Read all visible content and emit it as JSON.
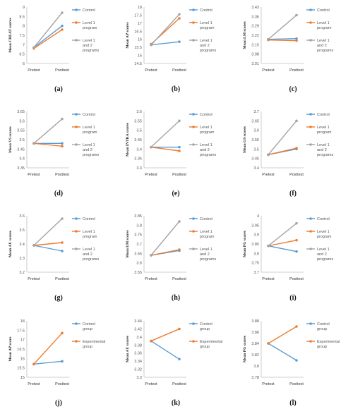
{
  "colors": {
    "blue": "#5b9bd5",
    "orange": "#ed7d31",
    "gray": "#a5a5a5",
    "axis": "#bfbfbf"
  },
  "chart_data": [
    {
      "type": "line",
      "panel_label": "(a)",
      "ylabel": "Mean CREAT scores",
      "categories": [
        "Pretest",
        "Posttest"
      ],
      "ylim": [
        6,
        9
      ],
      "yticks": [
        "6",
        "6.5",
        "7",
        "7.5",
        "8",
        "8.5",
        "9"
      ],
      "series": [
        {
          "name": "Control",
          "values": [
            6.85,
            8.0
          ],
          "color": "#5b9bd5"
        },
        {
          "name": "Level 1 program",
          "values": [
            6.8,
            7.8
          ],
          "color": "#ed7d31"
        },
        {
          "name": "Level 1 and 2 programs",
          "values": [
            6.85,
            8.7
          ],
          "color": "#a5a5a5"
        }
      ]
    },
    {
      "type": "line",
      "panel_label": "(b)",
      "ylabel": "Mean AP scores",
      "categories": [
        "Pretest",
        "Posttest"
      ],
      "ylim": [
        14.5,
        18
      ],
      "yticks": [
        "14.5",
        "15",
        "15.5",
        "16",
        "16.5",
        "17",
        "17.5",
        "18"
      ],
      "series": [
        {
          "name": "Control",
          "values": [
            15.65,
            15.85
          ],
          "color": "#5b9bd5"
        },
        {
          "name": "Level 1 program",
          "values": [
            15.7,
            17.3
          ],
          "color": "#ed7d31"
        },
        {
          "name": "Level 1 and 2 programs",
          "values": [
            15.65,
            17.55
          ],
          "color": "#a5a5a5"
        }
      ]
    },
    {
      "type": "line",
      "panel_label": "(c)",
      "ylabel": "Mean LM scores",
      "categories": [
        "Pretest",
        "Posttest"
      ],
      "ylim": [
        3.01,
        3.43
      ],
      "yticks": [
        "3.01",
        "3.08",
        "3.15",
        "3.22",
        "3.29",
        "3.36",
        "3.43"
      ],
      "series": [
        {
          "name": "Control",
          "values": [
            3.19,
            3.195
          ],
          "color": "#5b9bd5"
        },
        {
          "name": "Level 1 program",
          "values": [
            3.185,
            3.18
          ],
          "color": "#ed7d31"
        },
        {
          "name": "Level 1 and 2 programs",
          "values": [
            3.19,
            3.37
          ],
          "color": "#a5a5a5"
        }
      ]
    },
    {
      "type": "line",
      "panel_label": "(d)",
      "ylabel": "Mean VS scores",
      "categories": [
        "Pretest",
        "Posttest"
      ],
      "ylim": [
        3.35,
        3.65
      ],
      "yticks": [
        "3.35",
        "3.4",
        "3.45",
        "3.5",
        "3.55",
        "3.6",
        "3.65"
      ],
      "series": [
        {
          "name": "Control",
          "values": [
            3.48,
            3.48
          ],
          "color": "#5b9bd5"
        },
        {
          "name": "Level 1 program",
          "values": [
            3.48,
            3.465
          ],
          "color": "#ed7d31"
        },
        {
          "name": "Level 1 and 2 programs",
          "values": [
            3.48,
            3.61
          ],
          "color": "#a5a5a5"
        }
      ]
    },
    {
      "type": "line",
      "panel_label": "(e)",
      "ylabel": "Mean INTRA scores",
      "categories": [
        "Pretest",
        "Posttest"
      ],
      "ylim": [
        3.3,
        3.6
      ],
      "yticks": [
        "3.3",
        "3.35",
        "3.4",
        "3.45",
        "3.5",
        "3.55",
        "3.6"
      ],
      "series": [
        {
          "name": "Control",
          "values": [
            3.41,
            3.41
          ],
          "color": "#5b9bd5"
        },
        {
          "name": "Level 1 program",
          "values": [
            3.41,
            3.39
          ],
          "color": "#ed7d31"
        },
        {
          "name": "Level 1 and 2 programs",
          "values": [
            3.41,
            3.55
          ],
          "color": "#a5a5a5"
        }
      ]
    },
    {
      "type": "line",
      "panel_label": "(f)",
      "ylabel": "Mean GS scores",
      "categories": [
        "Pretest",
        "Posttest"
      ],
      "ylim": [
        3.4,
        3.7
      ],
      "yticks": [
        "3.4",
        "3.45",
        "3.5",
        "3.55",
        "3.6",
        "3.65",
        "3.7"
      ],
      "series": [
        {
          "name": "Control",
          "values": [
            3.47,
            3.5
          ],
          "color": "#5b9bd5"
        },
        {
          "name": "Level 1 program",
          "values": [
            3.47,
            3.505
          ],
          "color": "#ed7d31"
        },
        {
          "name": "Level 1 and 2 programs",
          "values": [
            3.47,
            3.65
          ],
          "color": "#a5a5a5"
        }
      ]
    },
    {
      "type": "line",
      "panel_label": "(g)",
      "ylabel": "Mean AU scores",
      "categories": [
        "Pretest",
        "Posttest"
      ],
      "ylim": [
        3.2,
        3.6
      ],
      "yticks": [
        "3.2",
        "3.3",
        "3.4",
        "3.5",
        "3.6"
      ],
      "series": [
        {
          "name": "Control",
          "values": [
            3.39,
            3.35
          ],
          "color": "#5b9bd5"
        },
        {
          "name": "Level 1 program",
          "values": [
            3.39,
            3.41
          ],
          "color": "#ed7d31"
        },
        {
          "name": "Level 1 and 2 programs",
          "values": [
            3.39,
            3.58
          ],
          "color": "#a5a5a5"
        }
      ]
    },
    {
      "type": "line",
      "panel_label": "(h)",
      "ylabel": "Mean EM scores",
      "categories": [
        "Pretest",
        "Posttest"
      ],
      "ylim": [
        3.55,
        3.85
      ],
      "yticks": [
        "3.55",
        "3.6",
        "3.65",
        "3.7",
        "3.75",
        "3.8",
        "3.85"
      ],
      "series": [
        {
          "name": "Control",
          "values": [
            3.64,
            3.665
          ],
          "color": "#5b9bd5"
        },
        {
          "name": "Level 1 program",
          "values": [
            3.64,
            3.67
          ],
          "color": "#ed7d31"
        },
        {
          "name": "Level 1 and 2 programs",
          "values": [
            3.64,
            3.82
          ],
          "color": "#a5a5a5"
        }
      ]
    },
    {
      "type": "line",
      "panel_label": "(i)",
      "ylabel": "Mean PG scores",
      "categories": [
        "Pretest",
        "Posttest"
      ],
      "ylim": [
        3.7,
        4.0
      ],
      "yticks": [
        "3.7",
        "3.75",
        "3.8",
        "3.85",
        "3.9",
        "3.95",
        "4"
      ],
      "series": [
        {
          "name": "Control",
          "values": [
            3.84,
            3.81
          ],
          "color": "#5b9bd5"
        },
        {
          "name": "Level 1 program",
          "values": [
            3.84,
            3.87
          ],
          "color": "#ed7d31"
        },
        {
          "name": "Level 1 and 2 programs",
          "values": [
            3.84,
            3.96
          ],
          "color": "#a5a5a5"
        }
      ]
    },
    {
      "type": "line",
      "panel_label": "(j)",
      "ylabel": "Mean AP score",
      "categories": [
        "Pretest",
        "Posttest"
      ],
      "ylim": [
        15,
        18
      ],
      "yticks": [
        "15",
        "15.5",
        "16",
        "16.5",
        "17",
        "17.5",
        "18"
      ],
      "series": [
        {
          "name": "Control group",
          "values": [
            15.7,
            15.85
          ],
          "color": "#5b9bd5"
        },
        {
          "name": "Experimental group",
          "values": [
            15.7,
            17.35
          ],
          "color": "#ed7d31"
        }
      ]
    },
    {
      "type": "line",
      "panel_label": "(k)",
      "ylabel": "Mean AU scores",
      "categories": [
        "Pretest",
        "Posttest"
      ],
      "ylim": [
        3.3,
        3.44
      ],
      "yticks": [
        "3.3",
        "3.32",
        "3.34",
        "3.36",
        "3.38",
        "3.4",
        "3.42",
        "3.44"
      ],
      "series": [
        {
          "name": "Control group",
          "values": [
            3.39,
            3.345
          ],
          "color": "#5b9bd5"
        },
        {
          "name": "Experimental group",
          "values": [
            3.39,
            3.42
          ],
          "color": "#ed7d31"
        }
      ]
    },
    {
      "type": "line",
      "panel_label": "(l)",
      "ylabel": "Mean PG scores",
      "categories": [
        "Pretest",
        "Posttest"
      ],
      "ylim": [
        3.78,
        3.88
      ],
      "yticks": [
        "3.78",
        "3.8",
        "3.82",
        "3.84",
        "3.86",
        "3.88"
      ],
      "series": [
        {
          "name": "Control group",
          "values": [
            3.84,
            3.81
          ],
          "color": "#5b9bd5"
        },
        {
          "name": "Experimental group",
          "values": [
            3.84,
            3.87
          ],
          "color": "#ed7d31"
        }
      ]
    }
  ]
}
